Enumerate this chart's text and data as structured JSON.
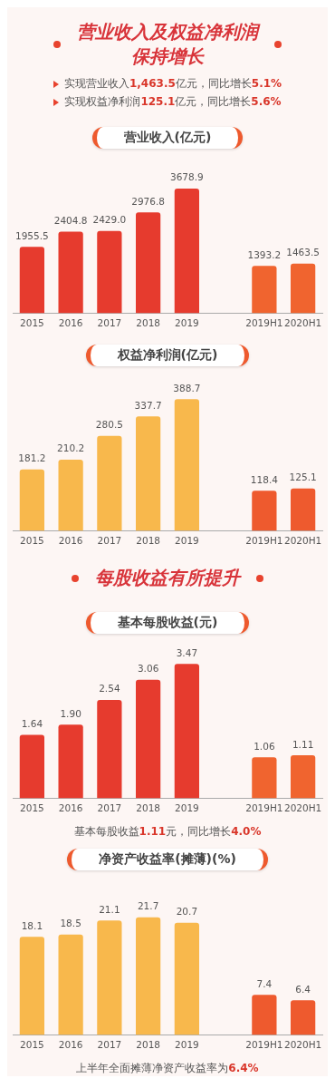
{
  "chart_data": [
    {
      "type": "other",
      "title": "营业收入及权益净利润保持增长",
      "annotations": [
        "实现营业收入1,463.5亿元，同比增长5.1%",
        "实现权益净利润125.1亿元，同比增长5.6%"
      ]
    },
    {
      "type": "bar",
      "title": "营业收入(亿元)",
      "categories": [
        "2015",
        "2016",
        "2017",
        "2018",
        "2019",
        null,
        "2019H1",
        "2020H1"
      ],
      "values": [
        1955.5,
        2404.8,
        2429.0,
        2976.8,
        3678.9,
        null,
        1393.2,
        1463.5
      ],
      "value_labels": [
        "1955.5",
        "2404.8",
        "2429.0",
        "2976.8",
        "3678.9",
        null,
        "1393.2",
        "1463.5"
      ],
      "colors": [
        "#e63b2e",
        "#e63b2e",
        "#e63b2e",
        "#e63b2e",
        "#e63b2e",
        "#e63b2e",
        "#f0642f",
        "#f0642f"
      ],
      "grid": false,
      "legend": false
    },
    {
      "type": "bar",
      "title": "权益净利润(亿元)",
      "categories": [
        "2015",
        "2016",
        "2017",
        "2018",
        "2019",
        null,
        "2019H1",
        "2020H1"
      ],
      "values": [
        181.2,
        210.2,
        280.5,
        337.7,
        388.7,
        null,
        118.4,
        125.1
      ],
      "data_labels": true,
      "colors": [
        "#f8b84c",
        "#f8b84c",
        "#f8b84c",
        "#f8b84c",
        "#f8b84c",
        "#f8b84c",
        "#ee5a2e",
        "#ee5a2e"
      ],
      "grid": false,
      "legend": false
    },
    {
      "type": "other",
      "title": "每股收益有所提升"
    },
    {
      "type": "bar",
      "title": "基本每股收益(元)",
      "categories": [
        "2015",
        "2016",
        "2017",
        "2018",
        "2019",
        null,
        "2019H1",
        "2020H1"
      ],
      "values": [
        1.64,
        1.9,
        2.54,
        3.06,
        3.47,
        null,
        1.06,
        1.11
      ],
      "value_labels": [
        "1.64",
        "1.90",
        "2.54",
        "3.06",
        "3.47",
        null,
        "1.06",
        "1.11"
      ],
      "colors": [
        "#e63b2e",
        "#e63b2e",
        "#e63b2e",
        "#e63b2e",
        "#e63b2e",
        "#e63b2e",
        "#f0642f",
        "#f0642f"
      ],
      "grid": false,
      "legend": false,
      "annotations": [
        "基本每股收益1.11元，同比增长4.0%"
      ]
    },
    {
      "type": "bar",
      "title": "净资产收益率(摊薄)(%)",
      "categories": [
        "2015",
        "2016",
        "2017",
        "2018",
        "2019",
        null,
        "2019H1",
        "2020H1"
      ],
      "values": [
        18.1,
        18.5,
        21.1,
        21.7,
        20.7,
        null,
        7.4,
        6.4
      ],
      "data_labels": true,
      "colors": [
        "#f8b84c",
        "#f8b84c",
        "#f8b84c",
        "#f8b84c",
        "#f8b84c",
        "#f8b84c",
        "#ee5a2e",
        "#ee5a2e"
      ],
      "grid": false,
      "legend": false,
      "annotations": [
        "上半年全面摊薄净资产收益率为6.4%"
      ]
    }
  ]
}
